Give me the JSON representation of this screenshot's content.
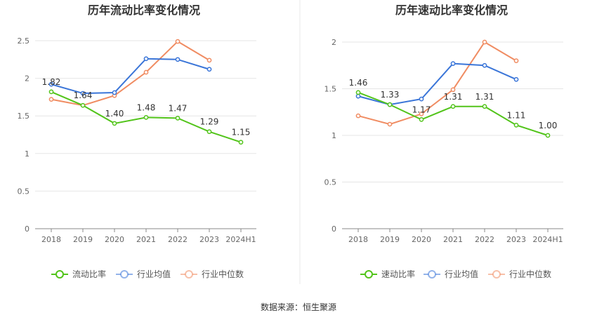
{
  "footer": {
    "source": "数据来源：恒生聚源"
  },
  "chart_data": [
    {
      "type": "line",
      "title": "历年流动比率变化情况",
      "categories": [
        "2018",
        "2019",
        "2020",
        "2021",
        "2022",
        "2023",
        "2024H1"
      ],
      "ylim": [
        0,
        2.5
      ],
      "yticks": [
        "0",
        "0.5",
        "1",
        "1.5",
        "2",
        "2.5"
      ],
      "ytick_values": [
        0,
        0.5,
        1,
        1.5,
        2,
        2.5
      ],
      "grid": true,
      "legend_position": "bottom",
      "series": [
        {
          "name": "流动比率",
          "color": "#52c41a",
          "values": [
            1.82,
            1.64,
            1.4,
            1.48,
            1.47,
            1.29,
            1.15
          ],
          "labels": [
            "1.82",
            "1.64",
            "1.40",
            "1.48",
            "1.47",
            "1.29",
            "1.15"
          ]
        },
        {
          "name": "行业均值",
          "color": "#3a75d8",
          "values": [
            1.92,
            1.8,
            1.81,
            2.26,
            2.25,
            2.12,
            null
          ],
          "labels": []
        },
        {
          "name": "行业中位数",
          "color": "#f08c62",
          "values": [
            1.72,
            1.64,
            1.77,
            2.08,
            2.49,
            2.24,
            null
          ],
          "labels": []
        }
      ]
    },
    {
      "type": "line",
      "title": "历年速动比率变化情况",
      "categories": [
        "2018",
        "2019",
        "2020",
        "2021",
        "2022",
        "2023",
        "2024H1"
      ],
      "ylim": [
        0,
        2
      ],
      "yticks": [
        "0",
        "0.5",
        "1",
        "1.5",
        "2"
      ],
      "ytick_values": [
        0,
        0.5,
        1,
        1.5,
        2
      ],
      "grid": true,
      "legend_position": "bottom",
      "series": [
        {
          "name": "速动比率",
          "color": "#52c41a",
          "values": [
            1.46,
            1.33,
            1.17,
            1.31,
            1.31,
            1.11,
            1.0
          ],
          "labels": [
            "1.46",
            "1.33",
            "1.17",
            "1.31",
            "1.31",
            "1.11",
            "1.00"
          ]
        },
        {
          "name": "行业均值",
          "color": "#3a75d8",
          "values": [
            1.42,
            1.33,
            1.39,
            1.77,
            1.75,
            1.6,
            null
          ],
          "labels": []
        },
        {
          "name": "行业中位数",
          "color": "#f08c62",
          "values": [
            1.21,
            1.12,
            1.23,
            1.49,
            2.0,
            1.8,
            null
          ],
          "labels": []
        }
      ]
    }
  ]
}
